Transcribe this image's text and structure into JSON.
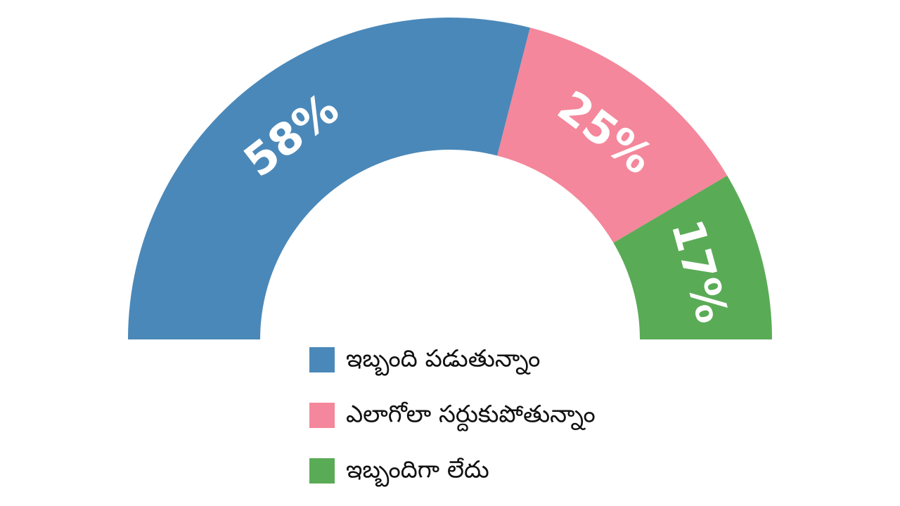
{
  "chart_data": {
    "type": "donut",
    "half": true,
    "categories": [
      "ఇబ్బంది పడుతున్నాం",
      "ఎలాగోలా సర్దుకుపోతున్నాం",
      "ఇబ్బందిగా లేదు"
    ],
    "values": [
      58,
      25,
      17
    ],
    "value_labels": [
      "58%",
      "25%",
      "17%"
    ],
    "colors": [
      "#4a88b9",
      "#f4879b",
      "#5aab56"
    ]
  }
}
